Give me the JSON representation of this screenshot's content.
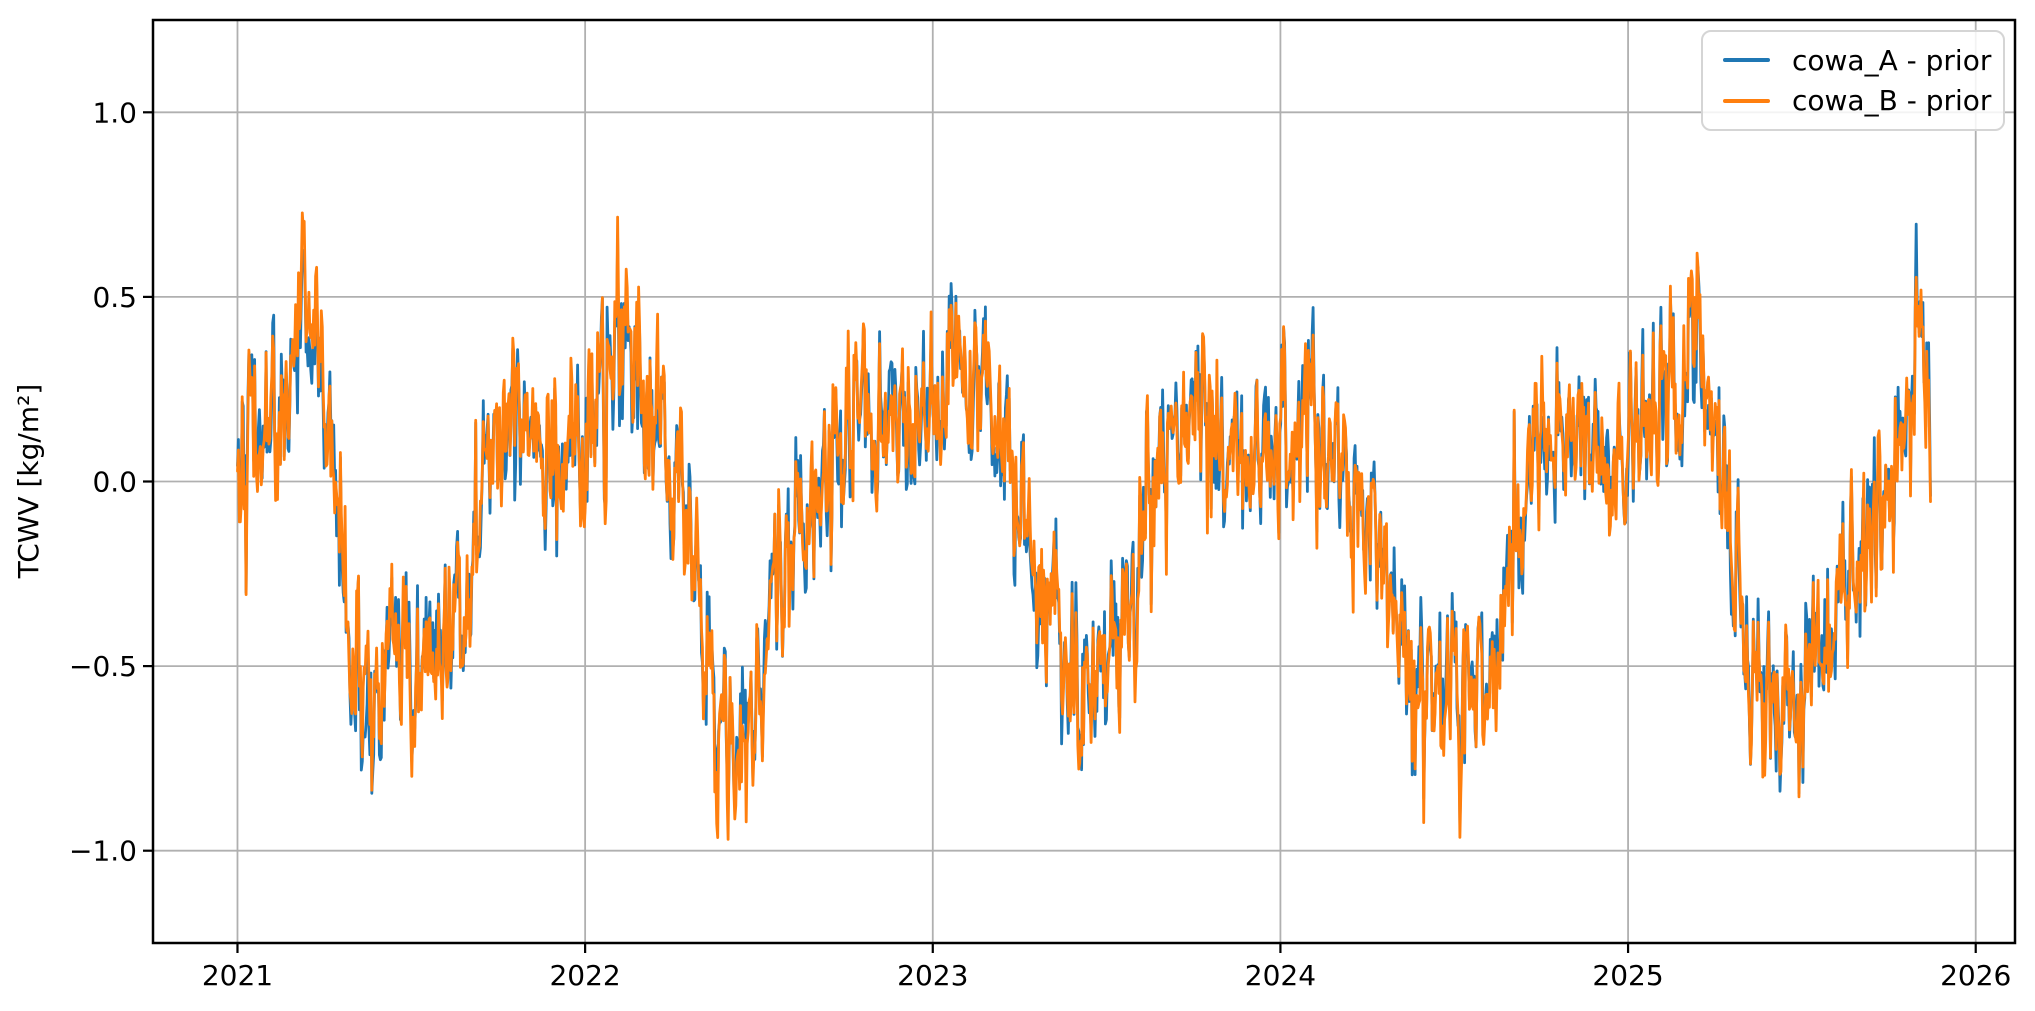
{
  "figure": {
    "background": "#ffffff",
    "axes_border_color": "#000000",
    "tick_label_color": "#000000"
  },
  "chart_data": {
    "type": "line",
    "title": "",
    "xlabel": "",
    "ylabel": "TCWV [kg/m²]",
    "xlim": [
      2020.757,
      2026.113
    ],
    "ylim": [
      -1.25,
      1.25
    ],
    "x_ticks": [
      2021,
      2022,
      2023,
      2024,
      2025,
      2026
    ],
    "x_tick_labels": [
      "2021",
      "2022",
      "2023",
      "2024",
      "2025",
      "2026"
    ],
    "y_ticks": [
      -1.0,
      -0.5,
      0.0,
      0.5,
      1.0
    ],
    "y_tick_labels": [
      "−1.0",
      "−0.5",
      "0.0",
      "0.5",
      "1.0"
    ],
    "grid": true,
    "grid_color": "#b0b0b0",
    "legend_position": "upper right",
    "x_start": 2021.0,
    "x_end": 2025.87,
    "anchors_x": [
      2021.0,
      2021.08,
      2021.16,
      2021.21,
      2021.27,
      2021.33,
      2021.38,
      2021.44,
      2021.52,
      2021.6,
      2021.67,
      2021.75,
      2021.83,
      2021.92,
      2022.0,
      2022.08,
      2022.14,
      2022.22,
      2022.3,
      2022.37,
      2022.44,
      2022.5,
      2022.56,
      2022.63,
      2022.71,
      2022.79,
      2022.88,
      2022.96,
      2023.04,
      2023.12,
      2023.2,
      2023.28,
      2023.36,
      2023.44,
      2023.52,
      2023.6,
      2023.68,
      2023.76,
      2023.84,
      2023.92,
      2024.0,
      2024.08,
      2024.16,
      2024.24,
      2024.32,
      2024.4,
      2024.48,
      2024.56,
      2024.64,
      2024.72,
      2024.8,
      2024.88,
      2024.96,
      2025.04,
      2025.12,
      2025.2,
      2025.28,
      2025.36,
      2025.44,
      2025.52,
      2025.6,
      2025.68,
      2025.76,
      2025.83,
      2025.87
    ],
    "series": [
      {
        "name": "cowa_A - prior",
        "color": "#1f77b4",
        "anchors_y": [
          0.18,
          0.12,
          0.3,
          0.48,
          0.1,
          -0.5,
          -0.72,
          -0.45,
          -0.55,
          -0.42,
          -0.15,
          0.1,
          0.22,
          0.08,
          0.12,
          0.25,
          0.33,
          0.1,
          -0.12,
          -0.62,
          -0.78,
          -0.55,
          -0.25,
          -0.05,
          0.05,
          0.1,
          0.15,
          0.12,
          0.22,
          0.25,
          0.1,
          -0.15,
          -0.45,
          -0.55,
          -0.48,
          -0.15,
          0.12,
          0.15,
          0.1,
          0.08,
          0.1,
          0.18,
          0.08,
          -0.05,
          -0.35,
          -0.55,
          -0.6,
          -0.58,
          -0.4,
          0.05,
          0.18,
          0.12,
          0.08,
          0.12,
          0.25,
          0.28,
          -0.05,
          -0.5,
          -0.6,
          -0.5,
          -0.35,
          -0.12,
          0.05,
          0.3,
          0.2
        ],
        "observed_extremes": {
          "max": 0.58,
          "max_at": 2021.2,
          "min": -1.0,
          "min_at": 2022.42
        }
      },
      {
        "name": "cowa_B - prior",
        "color": "#ff7f0e",
        "anchors_y": [
          0.15,
          0.1,
          0.32,
          0.56,
          0.08,
          -0.48,
          -0.65,
          -0.47,
          -0.58,
          -0.44,
          -0.17,
          0.12,
          0.25,
          0.1,
          0.1,
          0.28,
          0.38,
          0.12,
          -0.12,
          -0.6,
          -0.83,
          -0.58,
          -0.27,
          -0.07,
          0.07,
          0.12,
          0.13,
          0.1,
          0.2,
          0.27,
          0.12,
          -0.13,
          -0.47,
          -0.57,
          -0.5,
          -0.17,
          0.1,
          0.17,
          0.12,
          0.06,
          0.08,
          0.16,
          0.1,
          -0.07,
          -0.37,
          -0.57,
          -0.62,
          -0.6,
          -0.42,
          0.07,
          0.2,
          0.1,
          0.06,
          0.1,
          0.27,
          0.32,
          -0.03,
          -0.52,
          -0.63,
          -0.52,
          -0.37,
          -0.14,
          0.03,
          0.27,
          0.18
        ],
        "observed_extremes": {
          "max": 0.67,
          "max_at": 2021.2,
          "min": -1.04,
          "min_at": 2022.45
        }
      }
    ],
    "noise": {
      "seed": 42,
      "shared_sigma": 0.105,
      "shared_phi": 0.45,
      "indiv_sigma": 0.035,
      "indiv_phi": 0.3,
      "samples_per_year": 365
    }
  }
}
